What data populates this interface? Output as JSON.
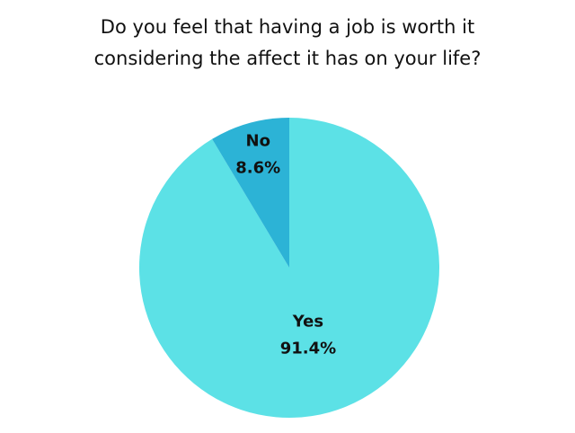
{
  "chart_data": {
    "type": "pie",
    "title": "Do you feel that having a job is worth it considering the affect it has on your life?",
    "categories": [
      "Yes",
      "No"
    ],
    "values": [
      91.4,
      8.6
    ],
    "value_labels": [
      "91.4%",
      "8.6%"
    ],
    "colors": [
      "#5ce1e6",
      "#2cb3d6"
    ]
  }
}
